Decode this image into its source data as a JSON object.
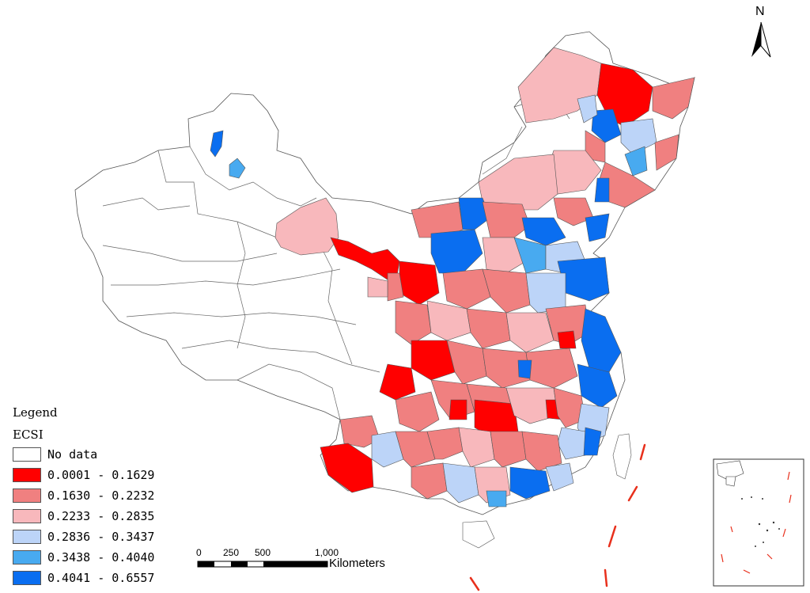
{
  "legend": {
    "title": "Legend",
    "field": "ECSI",
    "items": [
      {
        "label": "No data",
        "color": "#ffffff"
      },
      {
        "label": "0.0001 - 0.1629",
        "color": "#ff0000"
      },
      {
        "label": "0.1630 - 0.2232",
        "color": "#f08080"
      },
      {
        "label": "0.2233 - 0.2835",
        "color": "#f8b8bc"
      },
      {
        "label": "0.2836 - 0.3437",
        "color": "#bcd4f8"
      },
      {
        "label": "0.3438 - 0.4040",
        "color": "#48aaf0"
      },
      {
        "label": "0.4041 - 0.6557",
        "color": "#0a6ef0"
      }
    ]
  },
  "scale_bar": {
    "ticks": [
      "0",
      "250",
      "500",
      "1,000"
    ],
    "units": "Kilometers"
  },
  "north_arrow": {
    "label": "N",
    "icon": "north-arrow-icon"
  }
}
